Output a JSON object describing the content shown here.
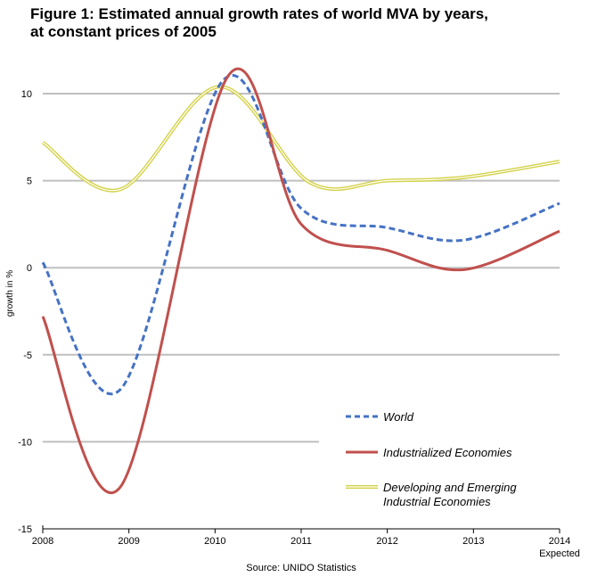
{
  "title_line1": "Figure 1:  Estimated annual growth rates of world MVA by years,",
  "title_line2": "at constant prices of 2005",
  "source": "Source: UNIDO Statistics",
  "chart_data": {
    "type": "line",
    "xlabel": "",
    "ylabel": "growth in %",
    "ylim": [
      -15,
      10
    ],
    "yticks": [
      10,
      5,
      0,
      -5,
      -10,
      -15
    ],
    "xlim": [
      2008,
      2014
    ],
    "xticks": [
      "2008",
      "2009",
      "2010",
      "2011",
      "2012",
      "2013",
      "2014"
    ],
    "xtick_sublabel": "Expected",
    "grid": true,
    "legend_position": "bottom-right",
    "series": [
      {
        "name": "World",
        "color": "#4572C4",
        "style": "dashed",
        "x": [
          2008,
          2008.9,
          2010.1,
          2011,
          2012,
          2012.9,
          2014
        ],
        "y": [
          0.3,
          -7.0,
          10.8,
          3.4,
          2.3,
          1.6,
          3.7
        ]
      },
      {
        "name": "Industrialized Economies",
        "color": "#C0504D",
        "style": "solid",
        "x": [
          2008,
          2008.9,
          2010.15,
          2011,
          2012,
          2012.9,
          2014
        ],
        "y": [
          -2.8,
          -12.6,
          11.0,
          2.5,
          1.0,
          -0.1,
          2.1
        ]
      },
      {
        "name": "Developing and Emerging Industrial Economies",
        "color": "#D4D24A",
        "style": "double",
        "x": [
          2008,
          2008.9,
          2010.05,
          2011.1,
          2012,
          2012.9,
          2014
        ],
        "y": [
          7.2,
          4.5,
          10.4,
          4.9,
          5.0,
          5.2,
          6.1
        ]
      }
    ],
    "legend": [
      {
        "lines": [
          "World"
        ]
      },
      {
        "lines": [
          "Industrialized Economies"
        ]
      },
      {
        "lines": [
          "Developing and Emerging",
          "Industrial Economies"
        ]
      }
    ]
  }
}
